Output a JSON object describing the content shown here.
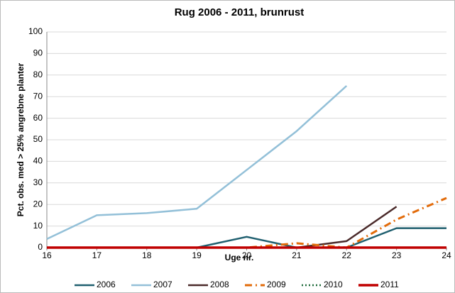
{
  "chart_data": {
    "type": "line",
    "title": "Rug 2006 - 2011, brunrust",
    "x_label": "Uge nr.",
    "y_label": "Pct. obs. med > 25% angrebne planter",
    "x": [
      16,
      17,
      18,
      19,
      20,
      21,
      22,
      23,
      24
    ],
    "xlim": [
      16,
      24
    ],
    "xticks": [
      16,
      17,
      18,
      19,
      20,
      21,
      22,
      23,
      24
    ],
    "ylim": [
      0,
      100
    ],
    "yticks": [
      0,
      10,
      20,
      30,
      40,
      50,
      60,
      70,
      80,
      90,
      100
    ],
    "grid": true,
    "legend": "bottom",
    "series": [
      {
        "name": "2006",
        "color": "#1f5f6f",
        "dash": "solid",
        "values": [
          0,
          0,
          0,
          0,
          5,
          0,
          0,
          9,
          9
        ]
      },
      {
        "name": "2007",
        "color": "#93c0d8",
        "dash": "solid",
        "values": [
          4,
          15,
          16,
          18,
          36,
          54,
          75,
          null,
          null
        ]
      },
      {
        "name": "2008",
        "color": "#4a2a2a",
        "dash": "solid",
        "values": [
          0,
          0,
          0,
          0,
          0,
          0,
          3,
          19,
          null
        ]
      },
      {
        "name": "2009",
        "color": "#e26b0a",
        "dash": "dashdot",
        "values": [
          0,
          0,
          0,
          0,
          0,
          2,
          0,
          13,
          23
        ]
      },
      {
        "name": "2010",
        "color": "#1e6b3a",
        "dash": "dotted",
        "values": [
          0,
          0,
          0,
          0,
          0,
          0,
          0,
          0,
          0
        ]
      },
      {
        "name": "2011",
        "color": "#c00000",
        "dash": "thick",
        "values": [
          0,
          0,
          0,
          0,
          0,
          0,
          0,
          0,
          0
        ]
      }
    ]
  }
}
